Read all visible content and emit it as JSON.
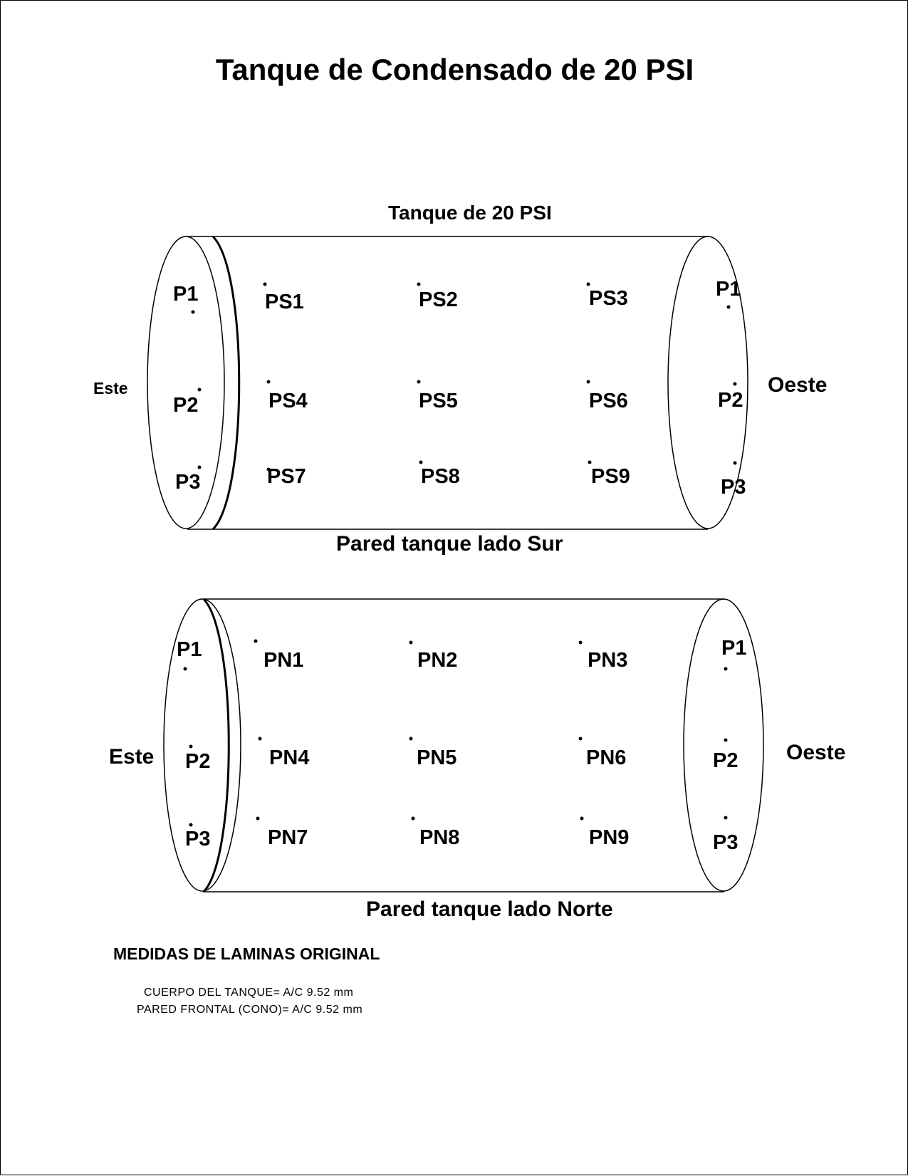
{
  "title": "Tanque de Condensado de 20 PSI",
  "colors": {
    "stroke": "#000000",
    "background": "#ffffff"
  },
  "south_tank": {
    "label": "Tanque de 20 PSI",
    "caption": "Pared tanque lado Sur",
    "east": "Este",
    "west": "Oeste",
    "east_points": [
      "P1",
      "P2",
      "P3"
    ],
    "west_points": [
      "P1",
      "P2",
      "P3"
    ],
    "points": [
      "PS1",
      "PS2",
      "PS3",
      "PS4",
      "PS5",
      "PS6",
      "PS7",
      "PS8",
      "PS9"
    ]
  },
  "north_tank": {
    "caption": "Pared tanque lado Norte",
    "east": "Este",
    "west": "Oeste",
    "east_points": [
      "P1",
      "P2",
      "P3"
    ],
    "west_points": [
      "P1",
      "P2",
      "P3"
    ],
    "points": [
      "PN1",
      "PN2",
      "PN3",
      "PN4",
      "PN5",
      "PN6",
      "PN7",
      "PN8",
      "PN9"
    ]
  },
  "measurements": {
    "heading": "MEDIDAS DE LAMINAS ORIGINAL",
    "lines": [
      "CUERPO DEL TANQUE=  A/C 9.52 mm",
      "PARED FRONTAL (CONO)= A/C 9.52 mm"
    ]
  }
}
